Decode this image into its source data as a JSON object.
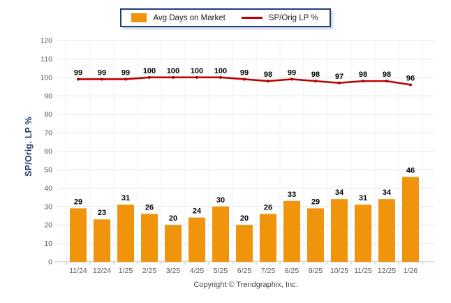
{
  "legend": {
    "items": [
      {
        "label": "Avg Days on Market",
        "swatch": "bar"
      },
      {
        "label": "SP/Orig LP %",
        "swatch": "line"
      }
    ]
  },
  "y_axis": {
    "title": "SP/Orig. LP %"
  },
  "footer": {
    "copyright": "Copyright © Trendgraphix, Inc."
  },
  "colors": {
    "bar": "#F0940C",
    "line": "#C00000",
    "line_marker": "#A50505",
    "grid_h": "#E7E7E7",
    "grid_v": "#F2F2F2",
    "axis": "#C2C2C2",
    "tick": "#595959",
    "label": "#000000",
    "legend_border": "#1F3E79",
    "y_title": "#1F3864"
  },
  "chart_data": {
    "type": "bar+line",
    "title": "",
    "xlabel": "",
    "ylabel": "SP/Orig. LP %",
    "categories": [
      "11/24",
      "12/24",
      "1/25",
      "2/25",
      "3/25",
      "4/25",
      "5/25",
      "6/25",
      "7/25",
      "8/25",
      "9/25",
      "10/25",
      "11/25",
      "12/25",
      "1/26"
    ],
    "series": [
      {
        "name": "Avg Days on Market",
        "type": "bar",
        "color": "#F0940C",
        "values": [
          29,
          23,
          31,
          26,
          20,
          24,
          30,
          20,
          26,
          33,
          29,
          34,
          31,
          34,
          46
        ]
      },
      {
        "name": "SP/Orig LP %",
        "type": "line",
        "color": "#C00000",
        "values": [
          99,
          99,
          99,
          100,
          100,
          100,
          100,
          99,
          98,
          99,
          98,
          97,
          98,
          98,
          96
        ]
      }
    ],
    "ylim": [
      0,
      120
    ],
    "yticks": [
      0,
      10,
      20,
      30,
      40,
      50,
      60,
      70,
      80,
      90,
      100,
      110,
      120
    ],
    "grid": true,
    "data_labels": true,
    "legend_position": "top-center"
  }
}
